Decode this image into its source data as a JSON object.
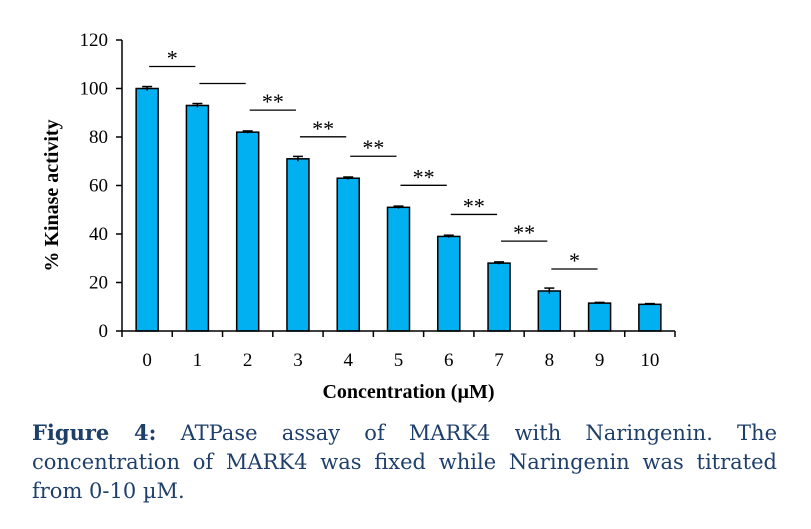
{
  "chart_data": {
    "type": "bar",
    "categories": [
      "0",
      "1",
      "2",
      "3",
      "4",
      "5",
      "6",
      "7",
      "8",
      "9",
      "10"
    ],
    "values": [
      100,
      93,
      82,
      71,
      63,
      51,
      39,
      28,
      16.5,
      11.5,
      11
    ],
    "errors": [
      0.8,
      0.8,
      0.5,
      1.0,
      0.5,
      0.5,
      0.5,
      0.5,
      1.2,
      0.3,
      0.3
    ],
    "xlabel": "Concentration (µM)",
    "ylabel": "% Kinase activity",
    "ylim": [
      0,
      120
    ],
    "yticks": [
      0,
      20,
      40,
      60,
      80,
      100,
      120
    ],
    "grid": false,
    "bar_color": "#00b0f0",
    "significance": [
      {
        "from": "0",
        "to": "1",
        "label": "*"
      },
      {
        "from": "1",
        "to": "2",
        "label": ""
      },
      {
        "from": "2",
        "to": "3",
        "label": "**"
      },
      {
        "from": "3",
        "to": "4",
        "label": "**"
      },
      {
        "from": "4",
        "to": "5",
        "label": "**"
      },
      {
        "from": "5",
        "to": "6",
        "label": "**"
      },
      {
        "from": "6",
        "to": "7",
        "label": "**"
      },
      {
        "from": "7",
        "to": "8",
        "label": "**"
      },
      {
        "from": "8",
        "to": "9",
        "label": "*"
      }
    ]
  },
  "caption": {
    "label": "Figure 4:",
    "text": " ATPase assay of MARK4 with Naringenin. The concentration of MARK4 was fixed while Naringenin was titrated from 0-10 µM."
  }
}
